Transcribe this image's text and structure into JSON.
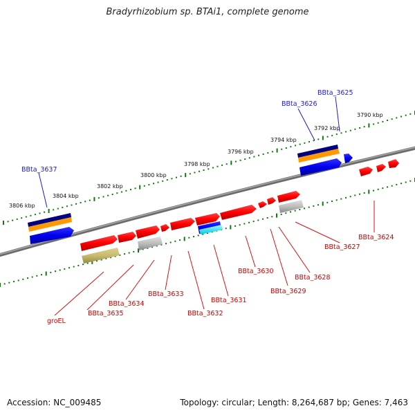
{
  "title": "Bradyrhizobium sp. BTAi1, complete genome",
  "footer": {
    "accession": "Accession: NC_009485",
    "stats": "Topology: circular; Length: 8,264,687 bp; Genes: 7,463"
  },
  "scale_labels": [
    "3806 kbp",
    "3804 kbp",
    "3802 kbp",
    "3800 kbp",
    "3798 kbp",
    "3796 kbp",
    "3794 kbp",
    "3792 kbp",
    "3790 kbp"
  ],
  "gene_labels_top": [
    "BBta_3637",
    "BBta_3626",
    "BBta_3625"
  ],
  "gene_labels_bottom": [
    "groEL",
    "BBta_3635",
    "BBta_3634",
    "BBta_3633",
    "BBta_3632",
    "BBta_3631",
    "BBta_3630",
    "BBta_3629",
    "BBta_3628",
    "BBta_3627",
    "BBta_3624"
  ],
  "colors": {
    "gene": "#ff0000",
    "blue_feature": "#0000ee",
    "navy_band": "#000080",
    "orange_band": "#ff9900",
    "olive_feature": "#c8bb70",
    "grey_feature": "#bbbbbb",
    "cyan_feature": "#00e5ee",
    "tick_green": "#117711",
    "backbone": "#777777",
    "label_blue": "#1a1acc",
    "label_red": "#cc0000"
  }
}
